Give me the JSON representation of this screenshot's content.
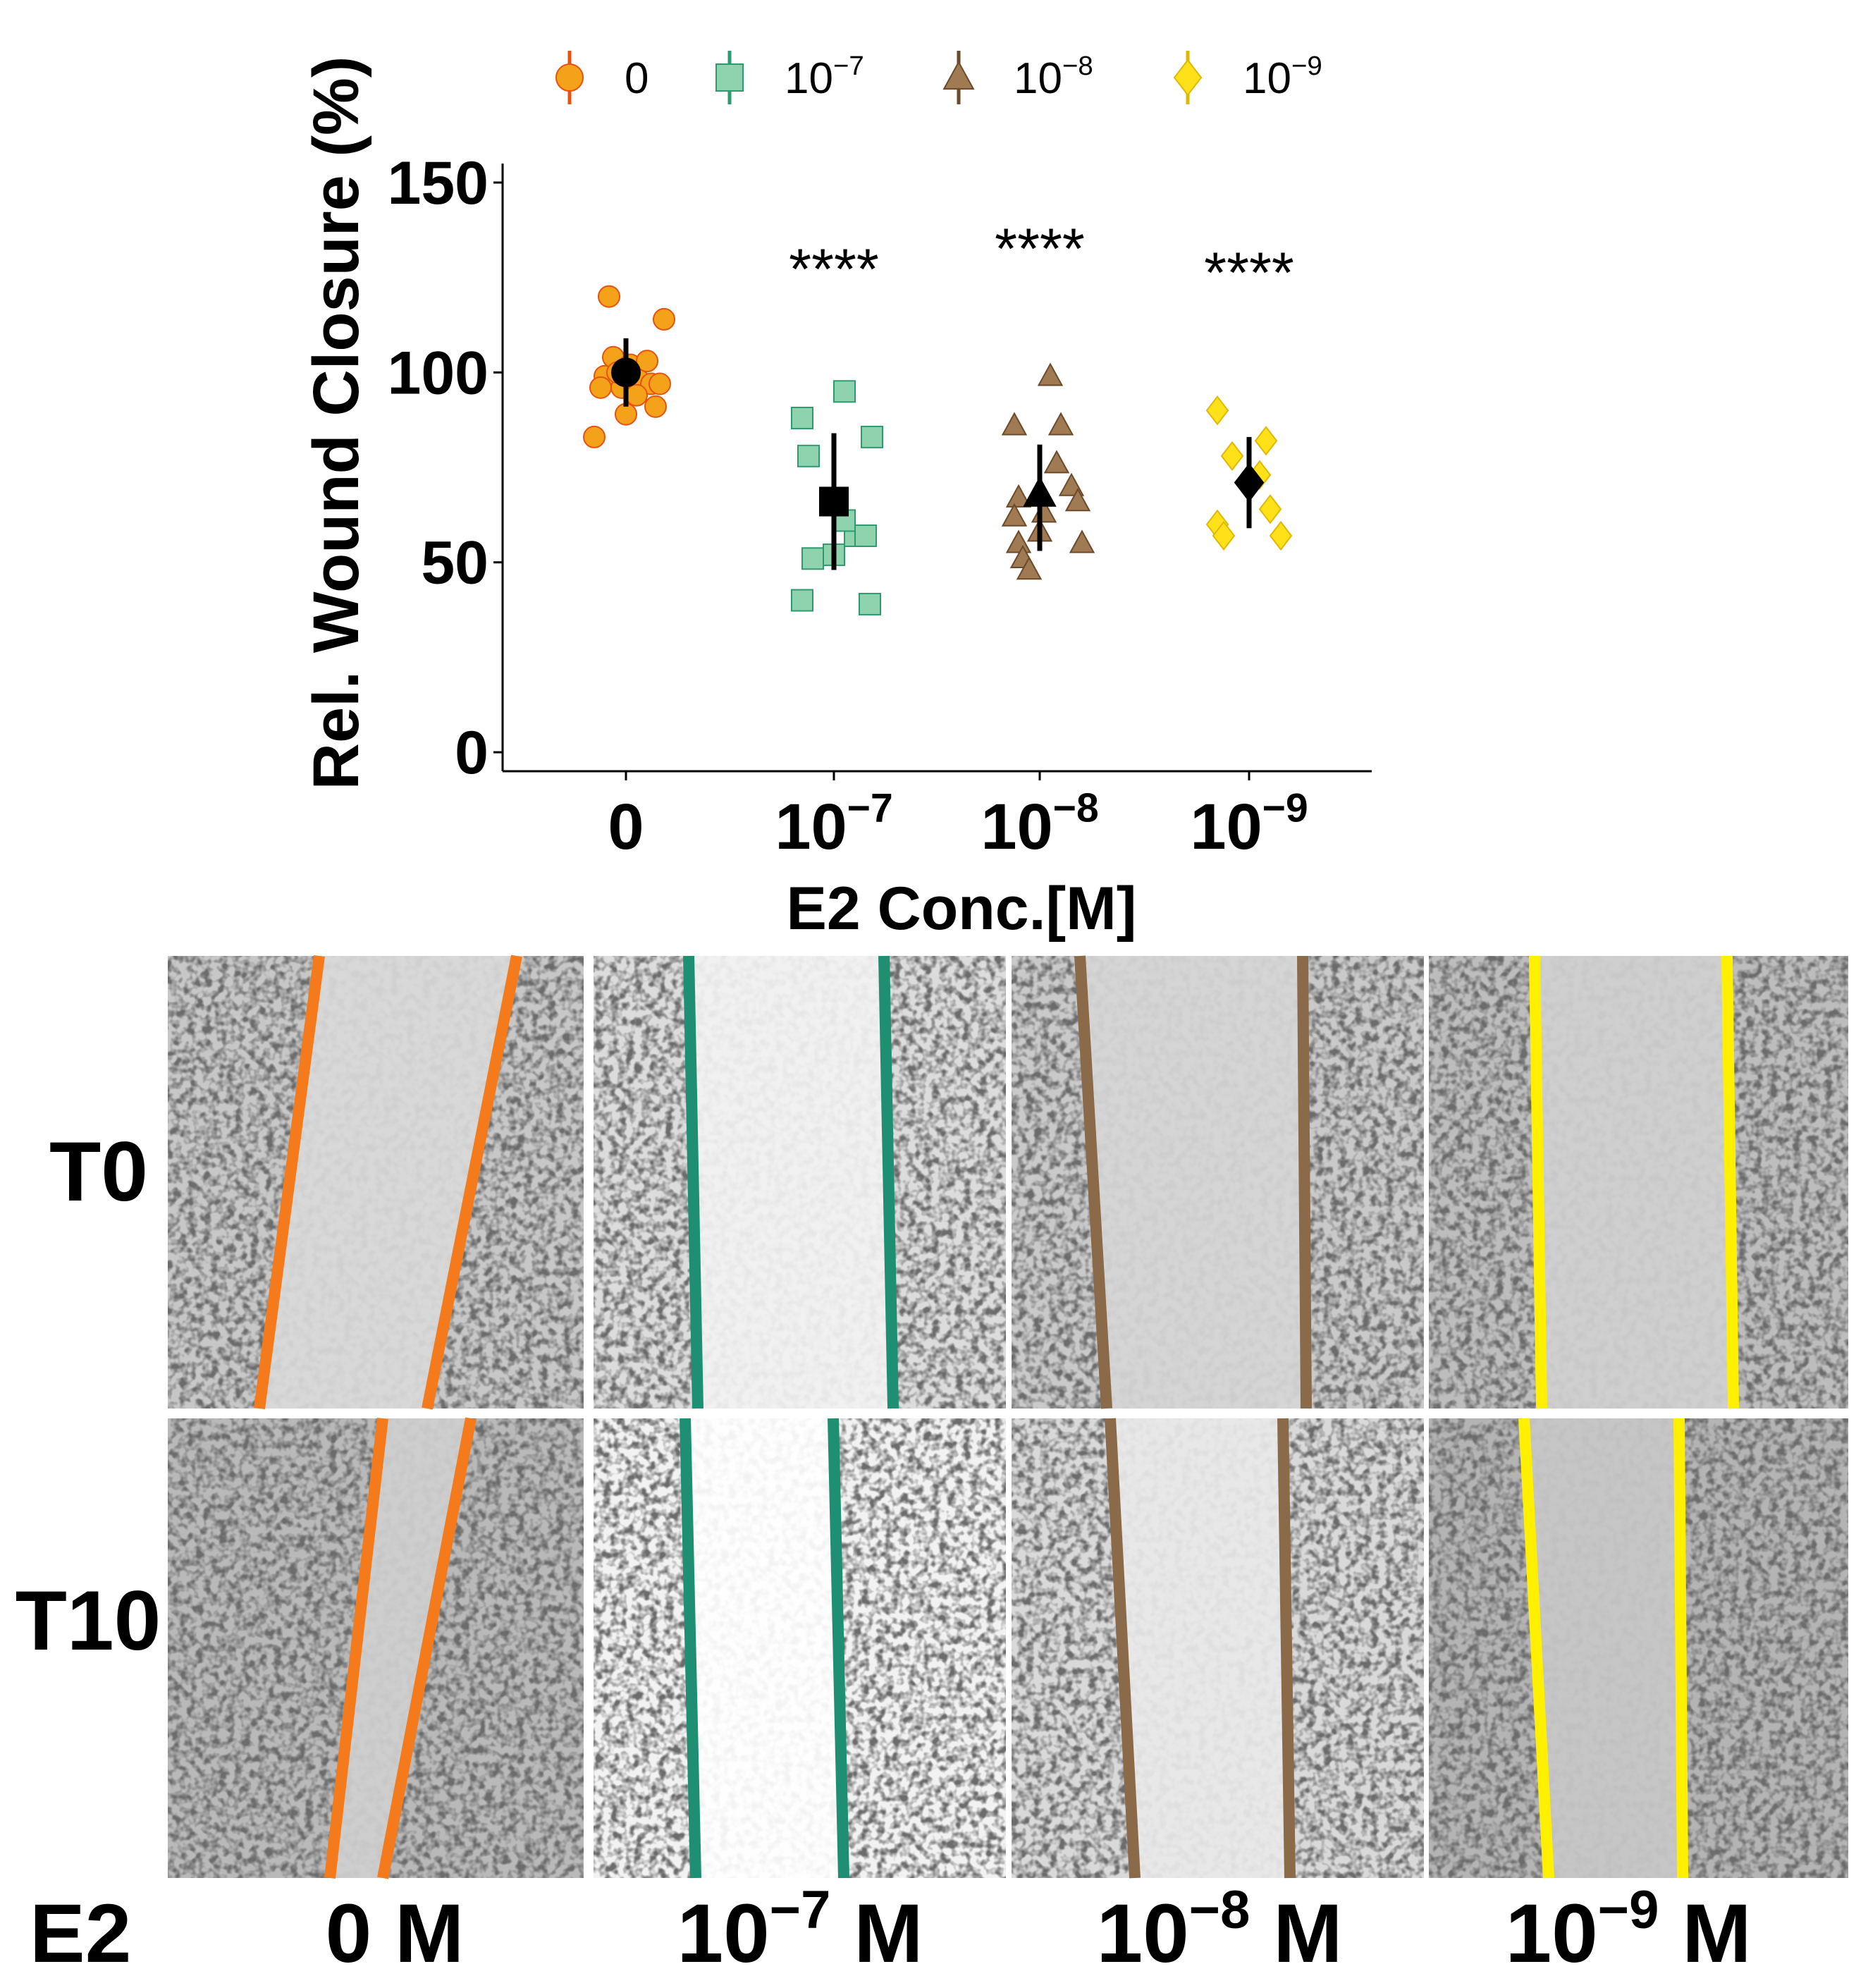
{
  "chart_data": {
    "type": "scatter",
    "title": "",
    "xlabel": "E2 Conc.[M]",
    "ylabel": "Rel. Wound Closure (%)",
    "ylim": [
      -5,
      155
    ],
    "yticks": [
      0,
      50,
      100,
      150
    ],
    "grid": false,
    "legend_position": "top",
    "groups": [
      {
        "base": "0",
        "exp": "",
        "legend_base": "0",
        "legend_exp": "",
        "color": "#E8520F",
        "fill2": "#F5A21B",
        "marker": "circle",
        "mean": 100,
        "err_low": 91,
        "err_high": 109,
        "signif": "",
        "points": [
          [
            -0.08,
            120
          ],
          [
            0.04,
            100
          ],
          [
            0.18,
            114
          ],
          [
            -0.15,
            83
          ],
          [
            -0.1,
            99
          ],
          [
            -0.06,
            104
          ],
          [
            0.02,
            102
          ],
          [
            0.06,
            98
          ],
          [
            0.12,
            97
          ],
          [
            0.14,
            91
          ],
          [
            0.0,
            89
          ],
          [
            -0.02,
            96
          ],
          [
            0.1,
            103
          ],
          [
            -0.12,
            96
          ],
          [
            0.05,
            94
          ],
          [
            -0.04,
            100
          ],
          [
            0.16,
            97
          ]
        ]
      },
      {
        "base": "10",
        "exp": "−7",
        "legend_base": "10",
        "legend_exp": "−7",
        "color": "#2E9B6F",
        "fill2": "#8ED3AE",
        "marker": "square",
        "mean": 66,
        "err_low": 48,
        "err_high": 84,
        "signif": "****",
        "points": [
          [
            0.05,
            95
          ],
          [
            -0.15,
            88
          ],
          [
            0.18,
            83
          ],
          [
            -0.12,
            78
          ],
          [
            -0.1,
            51
          ],
          [
            0.1,
            57
          ],
          [
            0.15,
            57
          ],
          [
            0.05,
            61
          ],
          [
            -0.15,
            40
          ],
          [
            0.17,
            39
          ],
          [
            0.0,
            52
          ]
        ]
      },
      {
        "base": "10",
        "exp": "−8",
        "legend_base": "10",
        "legend_exp": "−8",
        "color": "#6B4A2B",
        "fill2": "#A07A52",
        "marker": "triangle",
        "mean": 68,
        "err_low": 53,
        "err_high": 81,
        "signif": "****",
        "points": [
          [
            0.05,
            99
          ],
          [
            -0.12,
            86
          ],
          [
            0.1,
            86
          ],
          [
            0.08,
            76
          ],
          [
            0.15,
            70
          ],
          [
            -0.1,
            67
          ],
          [
            0.02,
            63
          ],
          [
            0.18,
            66
          ],
          [
            -0.12,
            62
          ],
          [
            0.0,
            58
          ],
          [
            0.2,
            55
          ],
          [
            -0.1,
            55
          ],
          [
            -0.08,
            51
          ],
          [
            -0.05,
            48
          ]
        ]
      },
      {
        "base": "10",
        "exp": "−9",
        "legend_base": "10",
        "legend_exp": "−9",
        "color": "#E0B800",
        "fill2": "#FFE11A",
        "marker": "diamond",
        "mean": 71,
        "err_low": 59,
        "err_high": 83,
        "signif": "****",
        "points": [
          [
            -0.15,
            90
          ],
          [
            0.08,
            82
          ],
          [
            -0.08,
            78
          ],
          [
            0.05,
            73
          ],
          [
            0.1,
            64
          ],
          [
            -0.15,
            60
          ],
          [
            -0.12,
            57
          ],
          [
            0.15,
            57
          ]
        ]
      }
    ]
  },
  "panels": {
    "row_labels": [
      "T0",
      "T10"
    ],
    "bottom_prefix": "E2",
    "columns": [
      {
        "base": "0",
        "exp": "",
        "unit": "M",
        "line_color": "#F47A1C"
      },
      {
        "base": "10",
        "exp": "−7",
        "unit": "M",
        "line_color": "#1F8F74"
      },
      {
        "base": "10",
        "exp": "−8",
        "unit": "M",
        "line_color": "#8B6A4A"
      },
      {
        "base": "10",
        "exp": "−9",
        "unit": "M",
        "line_color": "#FFF000"
      }
    ]
  }
}
